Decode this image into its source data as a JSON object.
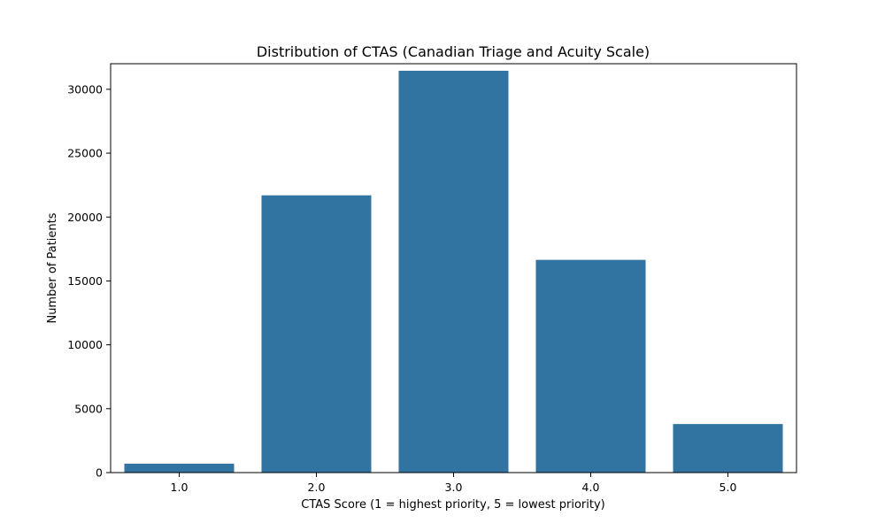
{
  "chart_data": {
    "type": "bar",
    "title": "Distribution of CTAS (Canadian Triage and Acuity Scale)",
    "xlabel": "CTAS  Score (1 = highest priority, 5 = lowest priority)",
    "ylabel": "Number of Patients",
    "categories": [
      "1.0",
      "2.0",
      "3.0",
      "4.0",
      "5.0"
    ],
    "values": [
      700,
      21700,
      31450,
      16650,
      3800
    ],
    "ylim": [
      0,
      32000
    ],
    "yticks": [
      0,
      5000,
      10000,
      15000,
      20000,
      25000,
      30000
    ],
    "ytick_labels": [
      "0",
      "5000",
      "10000",
      "15000",
      "20000",
      "25000",
      "30000"
    ],
    "bar_color": "#3274a1",
    "grid": false,
    "legend": "none"
  }
}
